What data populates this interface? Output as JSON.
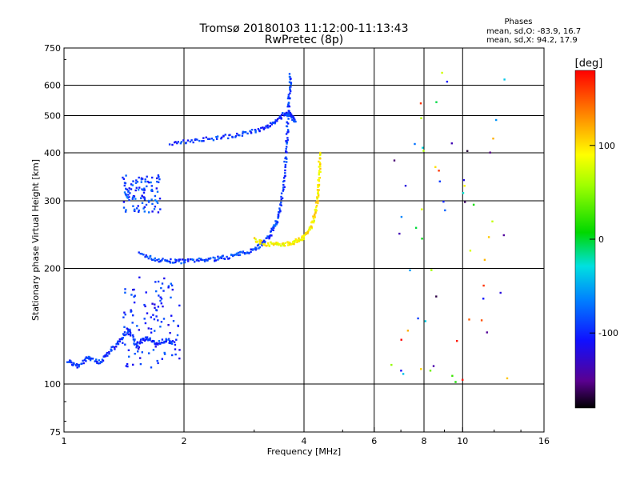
{
  "title_line1": "Tromsø 20180103 11:12:00-11:13:43",
  "title_line2": "RwPretec (8p)",
  "stats": {
    "heading": "Phases",
    "line_o": "mean, sd,O: -83.9, 16.7",
    "line_x": "mean, sd,X:  94.2, 17.9"
  },
  "colorbar": {
    "label": "[deg]",
    "ticks": [
      {
        "value": 100,
        "label": "100"
      },
      {
        "value": 0,
        "label": "0"
      },
      {
        "value": -100,
        "label": "-100"
      }
    ],
    "range": [
      -180,
      180
    ],
    "colors": {
      "ordinary_trace": "#2a3fe0",
      "extraordinary_trace": "#ffe000",
      "spread": "#2070e8",
      "bright_blue": "#2aa0ff",
      "cyan": "#20c8e8"
    }
  },
  "chart_data": {
    "type": "scatter",
    "title": "Tromsø 20180103 11:12:00-11:13:43",
    "subtitle": "RwPretec (8p)",
    "xlabel": "Frequency [MHz]",
    "ylabel": "Stationary phase Virtual Height [km]",
    "x_scale": "log",
    "y_scale": "log",
    "xlim": [
      1,
      16
    ],
    "ylim": [
      75,
      750
    ],
    "grid": true,
    "x_ticks": [
      {
        "value": 1,
        "label": "1"
      },
      {
        "value": 2,
        "label": "2"
      },
      {
        "value": 4,
        "label": "4"
      },
      {
        "value": 6,
        "label": "6"
      },
      {
        "value": 8,
        "label": "8"
      },
      {
        "value": 10,
        "label": "10"
      },
      {
        "value": 16,
        "label": "16"
      }
    ],
    "y_ticks": [
      {
        "value": 75,
        "label": "75"
      },
      {
        "value": 100,
        "label": "100"
      },
      {
        "value": 200,
        "label": "200"
      },
      {
        "value": 300,
        "label": "300"
      },
      {
        "value": 400,
        "label": "400"
      },
      {
        "value": 500,
        "label": "500"
      },
      {
        "value": 600,
        "label": "600"
      },
      {
        "value": 750,
        "label": "750"
      }
    ],
    "vertical_grid_freqs": [
      2,
      4,
      6,
      8,
      10
    ],
    "horizontal_grid_heights": [
      100,
      200,
      300,
      400,
      500,
      600
    ],
    "series": [
      {
        "name": "F-layer ordinary trace",
        "phase_deg": -90,
        "points": [
          [
            1.55,
            218
          ],
          [
            1.7,
            211
          ],
          [
            1.85,
            209
          ],
          [
            2.0,
            209
          ],
          [
            2.2,
            210
          ],
          [
            2.4,
            212
          ],
          [
            2.6,
            215
          ],
          [
            2.8,
            219
          ],
          [
            3.0,
            225
          ],
          [
            3.15,
            233
          ],
          [
            3.3,
            245
          ],
          [
            3.4,
            262
          ],
          [
            3.48,
            285
          ],
          [
            3.55,
            330
          ],
          [
            3.6,
            390
          ],
          [
            3.63,
            450
          ],
          [
            3.65,
            520
          ],
          [
            3.68,
            580
          ],
          [
            3.7,
            640
          ]
        ]
      },
      {
        "name": "F-layer extraordinary trace",
        "phase_deg": 95,
        "points": [
          [
            3.0,
            238
          ],
          [
            3.2,
            232
          ],
          [
            3.4,
            231
          ],
          [
            3.6,
            232
          ],
          [
            3.8,
            235
          ],
          [
            3.95,
            240
          ],
          [
            4.1,
            250
          ],
          [
            4.22,
            265
          ],
          [
            4.3,
            290
          ],
          [
            4.34,
            320
          ],
          [
            4.37,
            360
          ],
          [
            4.38,
            400
          ]
        ]
      },
      {
        "name": "Oblique echo trace",
        "phase_deg": -95,
        "points": [
          [
            1.85,
            425
          ],
          [
            2.1,
            430
          ],
          [
            2.4,
            438
          ],
          [
            2.7,
            445
          ],
          [
            3.0,
            455
          ],
          [
            3.25,
            470
          ],
          [
            3.45,
            490
          ],
          [
            3.6,
            510
          ],
          [
            3.72,
            500
          ],
          [
            3.8,
            480
          ]
        ]
      },
      {
        "name": "Lower trace",
        "phase_deg": -95,
        "points": [
          [
            1.02,
            115
          ],
          [
            1.08,
            111
          ],
          [
            1.15,
            118
          ],
          [
            1.22,
            114
          ],
          [
            1.3,
            121
          ],
          [
            1.38,
            130
          ],
          [
            1.45,
            138
          ],
          [
            1.52,
            126
          ],
          [
            1.6,
            132
          ],
          [
            1.7,
            128
          ],
          [
            1.8,
            130
          ],
          [
            1.9,
            128
          ]
        ]
      }
    ],
    "scatter_regions": [
      {
        "name": "Low-frequency sporadic echoes",
        "f_range": [
          1.4,
          1.95
        ],
        "h_range": [
          110,
          190
        ],
        "phase_deg": -100
      },
      {
        "name": "Mid-height spread",
        "f_range": [
          1.4,
          1.75
        ],
        "h_range": [
          280,
          350
        ],
        "phase_deg": -90
      },
      {
        "name": "High-frequency scattered echoes",
        "f_range": [
          6.5,
          13
        ],
        "h_range": [
          100,
          660
        ],
        "phase_deg": 60
      }
    ]
  }
}
